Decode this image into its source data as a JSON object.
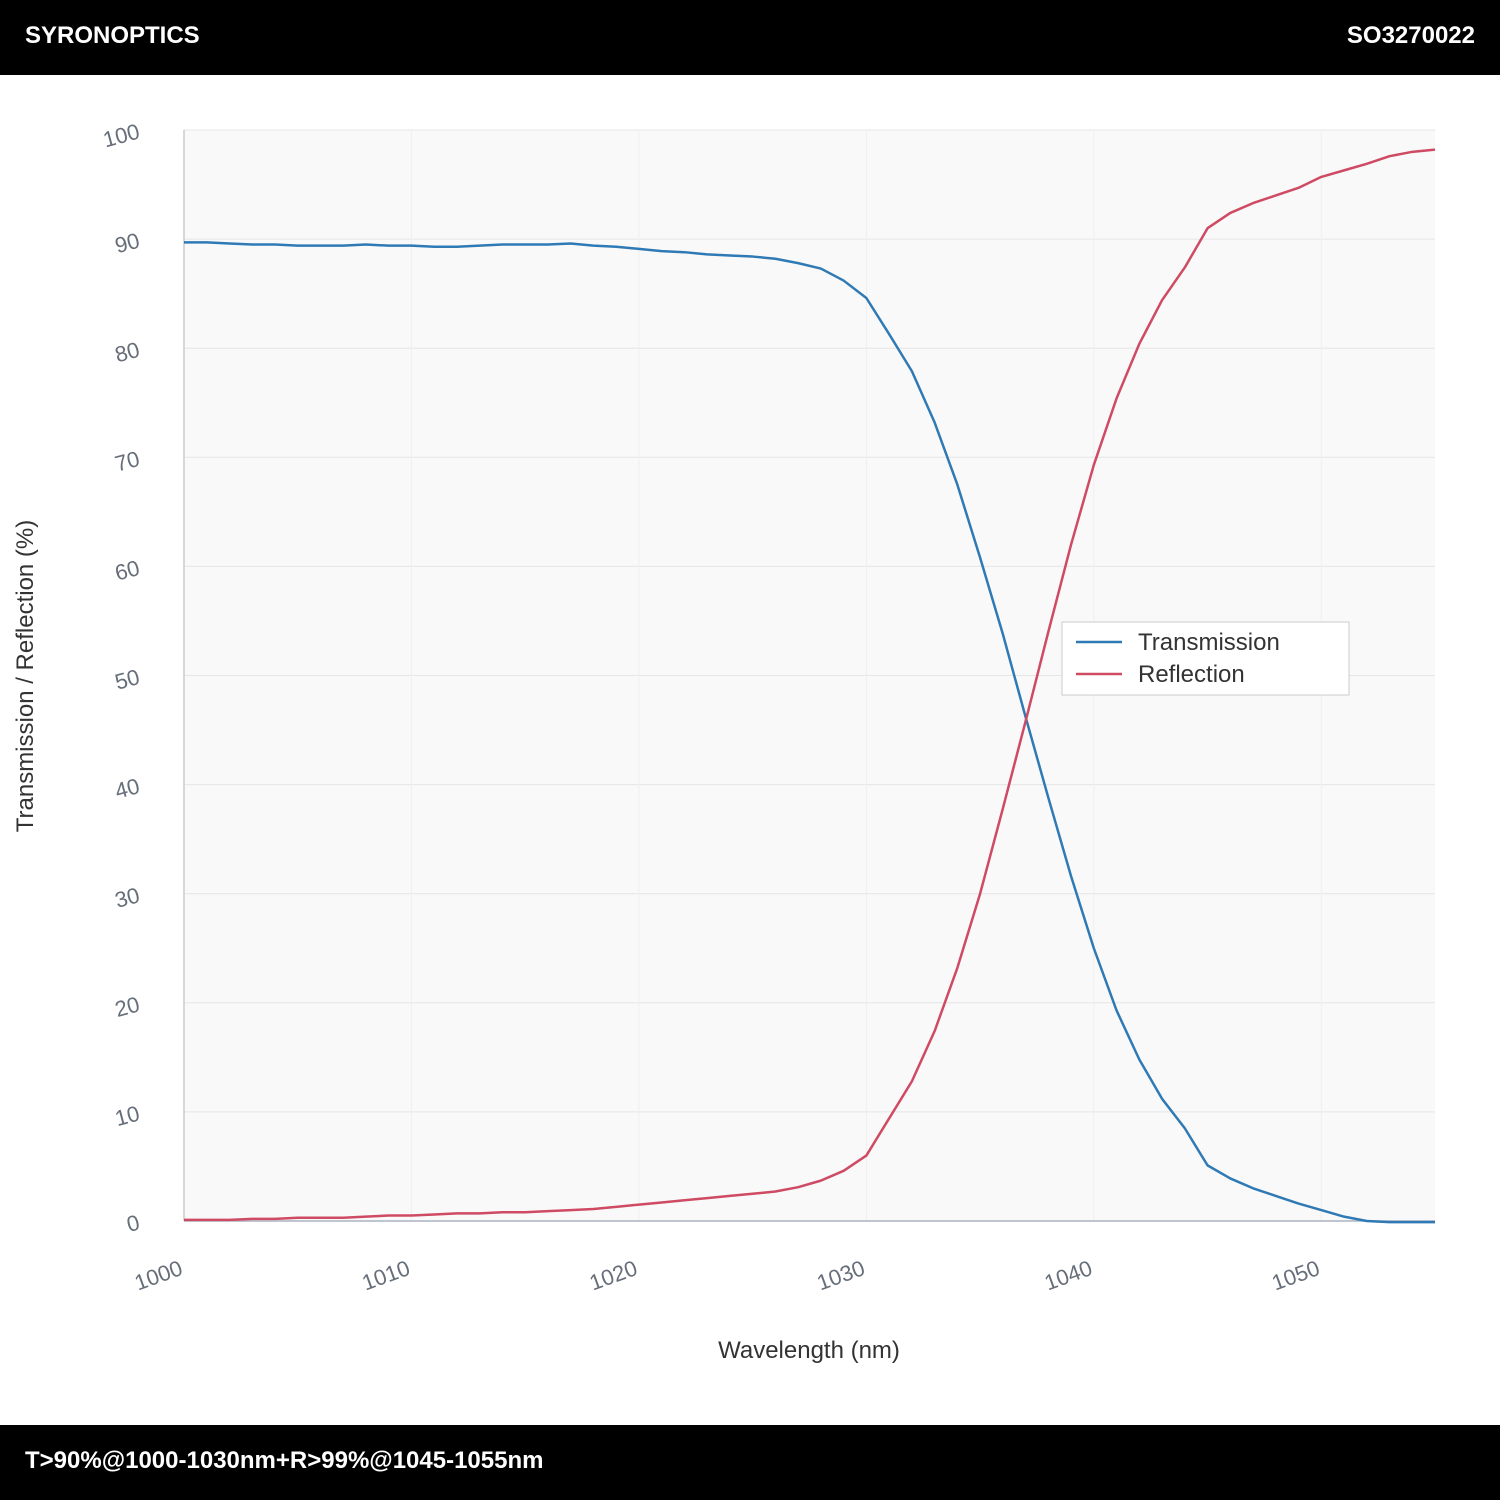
{
  "header": {
    "brand": "SYRONOPTICS",
    "code": "SO3270022"
  },
  "footer": {
    "text": "T>90%@1000-1030nm+R>99%@1045-1055nm"
  },
  "chart_data": {
    "type": "line",
    "x_label": "Wavelength (nm)",
    "y_label": "Transmission / Reflection (%)",
    "x": [
      1000,
      1001,
      1002,
      1003,
      1004,
      1005,
      1006,
      1007,
      1008,
      1009,
      1010,
      1011,
      1012,
      1013,
      1014,
      1015,
      1016,
      1017,
      1018,
      1019,
      1020,
      1021,
      1022,
      1023,
      1024,
      1025,
      1026,
      1027,
      1028,
      1029,
      1030,
      1031,
      1032,
      1033,
      1034,
      1035,
      1036,
      1037,
      1038,
      1039,
      1040,
      1041,
      1042,
      1043,
      1044,
      1045,
      1046,
      1047,
      1048,
      1049,
      1050,
      1051,
      1052,
      1053,
      1054,
      1055
    ],
    "series": [
      {
        "name": "Transmission",
        "color": "#2f7ab5",
        "values": [
          89.7,
          89.7,
          89.6,
          89.5,
          89.5,
          89.4,
          89.4,
          89.4,
          89.5,
          89.4,
          89.4,
          89.3,
          89.3,
          89.4,
          89.5,
          89.5,
          89.5,
          89.6,
          89.4,
          89.3,
          89.1,
          88.9,
          88.8,
          88.6,
          88.5,
          88.4,
          88.2,
          87.8,
          87.3,
          86.2,
          84.6,
          81.3,
          77.9,
          73.2,
          67.5,
          60.8,
          53.8,
          46.2,
          38.8,
          31.6,
          25.0,
          19.3,
          14.8,
          11.2,
          8.5,
          5.1,
          3.9,
          3.0,
          2.3,
          1.6,
          1.0,
          0.4,
          0.0,
          -0.1,
          -0.1,
          -0.1
        ]
      },
      {
        "name": "Reflection",
        "color": "#cf4a63",
        "values": [
          0.1,
          0.1,
          0.1,
          0.2,
          0.2,
          0.3,
          0.3,
          0.3,
          0.4,
          0.5,
          0.5,
          0.6,
          0.7,
          0.7,
          0.8,
          0.8,
          0.9,
          1.0,
          1.1,
          1.3,
          1.5,
          1.7,
          1.9,
          2.1,
          2.3,
          2.5,
          2.7,
          3.1,
          3.7,
          4.6,
          6.0,
          9.4,
          12.8,
          17.4,
          23.2,
          30.0,
          37.8,
          45.8,
          54.0,
          62.0,
          69.3,
          75.4,
          80.4,
          84.4,
          87.4,
          91.0,
          92.4,
          93.3,
          94.0,
          94.7,
          95.7,
          96.3,
          96.9,
          97.6,
          98.0,
          98.2
        ]
      }
    ],
    "xlim": [
      1000,
      1055
    ],
    "ylim": [
      0,
      100
    ],
    "xticks": [
      1000,
      1010,
      1020,
      1030,
      1040,
      1050
    ],
    "yticks": [
      0,
      10,
      20,
      30,
      40,
      50,
      60,
      70,
      80,
      90,
      100
    ],
    "grid": true,
    "legend": "right"
  }
}
